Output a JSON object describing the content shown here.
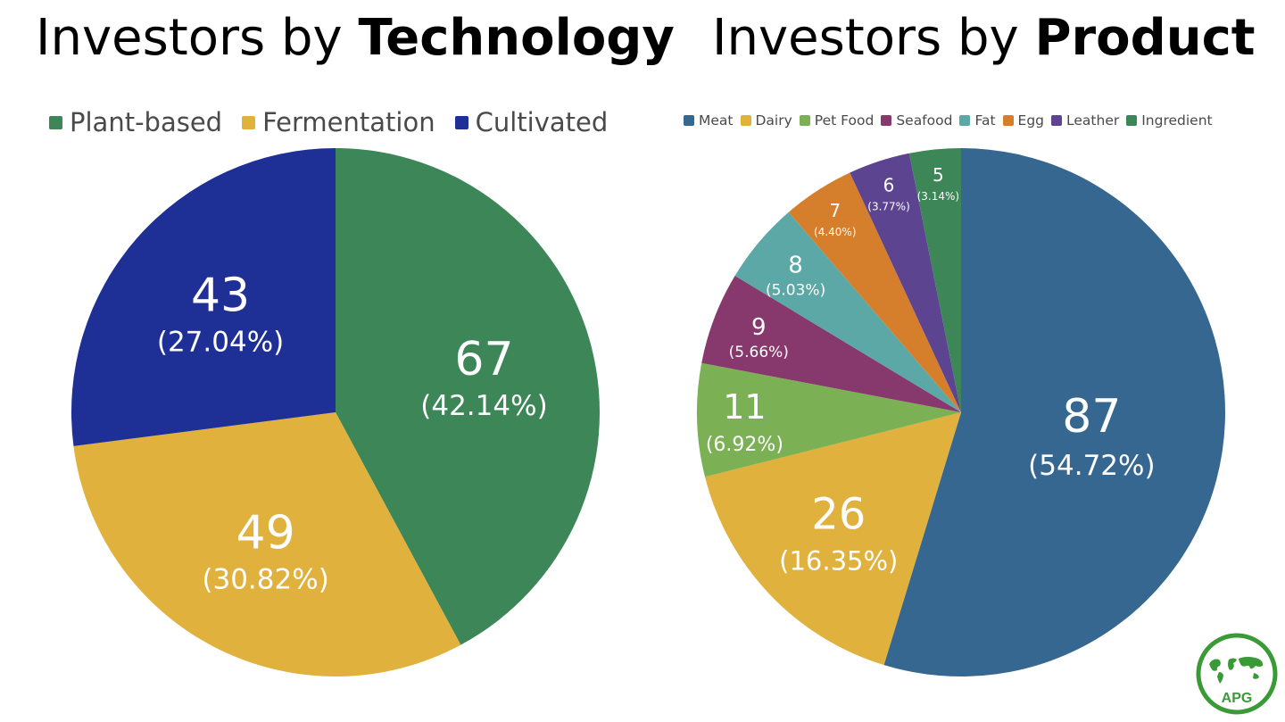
{
  "titles": {
    "tech_prefix": "Investors by ",
    "tech_bold": "Technology",
    "prod_prefix": "Investors by ",
    "prod_bold": "Product"
  },
  "logo": {
    "text": "APG",
    "color": "#3a9a35"
  },
  "chart_data": [
    {
      "type": "pie",
      "title": "Investors by Technology",
      "legend_position": "top",
      "slices": [
        {
          "name": "Plant-based",
          "value": 67,
          "percent": "42.14%",
          "color": "#3d8658"
        },
        {
          "name": "Fermentation",
          "value": 49,
          "percent": "30.82%",
          "color": "#e1b13d"
        },
        {
          "name": "Cultivated",
          "value": 43,
          "percent": "27.04%",
          "color": "#1e2f96"
        }
      ]
    },
    {
      "type": "pie",
      "title": "Investors by Product",
      "legend_position": "top",
      "slices": [
        {
          "name": "Meat",
          "value": 87,
          "percent": "54.72%",
          "color": "#366790"
        },
        {
          "name": "Dairy",
          "value": 26,
          "percent": "16.35%",
          "color": "#e1b13d"
        },
        {
          "name": "Pet Food",
          "value": 11,
          "percent": "6.92%",
          "color": "#7bb055"
        },
        {
          "name": "Seafood",
          "value": 9,
          "percent": "5.66%",
          "color": "#87386d"
        },
        {
          "name": "Fat",
          "value": 8,
          "percent": "5.03%",
          "color": "#5ba8a6"
        },
        {
          "name": "Egg",
          "value": 7,
          "percent": "4.40%",
          "color": "#d57f2d"
        },
        {
          "name": "Leather",
          "value": 6,
          "percent": "3.77%",
          "color": "#5d4491"
        },
        {
          "name": "Ingredient",
          "value": 5,
          "percent": "3.14%",
          "color": "#3d8658"
        }
      ]
    }
  ]
}
